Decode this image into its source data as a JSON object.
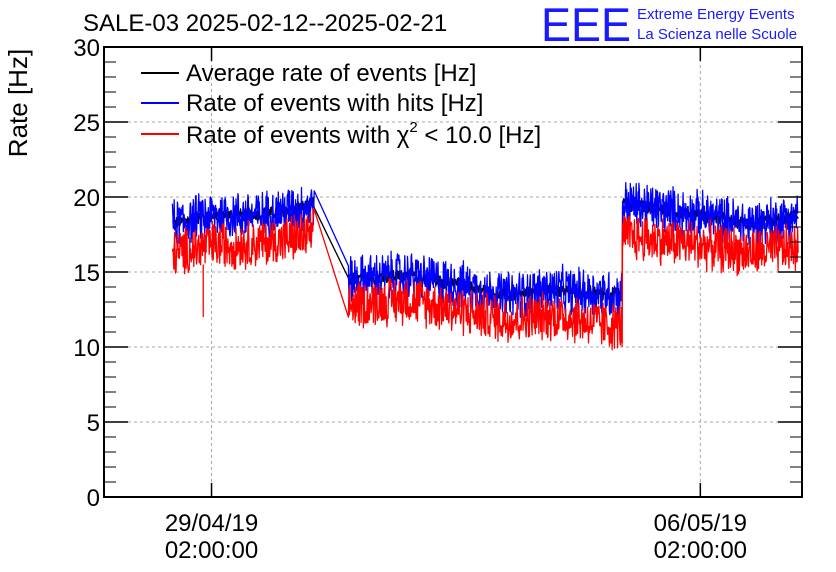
{
  "chart_data": {
    "type": "line",
    "title": "SALE-03 2025-02-12--2025-02-21",
    "xlabel": "",
    "ylabel": "Rate [Hz]",
    "ylim": [
      0,
      30
    ],
    "yticks": [
      "0",
      "5",
      "10",
      "15",
      "20",
      "25",
      "30"
    ],
    "xlim": [
      -0.22,
      1.208
    ],
    "xticks": [
      {
        "date": "29/04/19",
        "time": "02:00:00",
        "x": 0
      },
      {
        "date": "06/05/19",
        "time": "02:00:00",
        "x": 1
      }
    ],
    "grid": true,
    "legend_position": "top-left",
    "legend": [
      {
        "label": "Average rate of events [Hz]",
        "color": "#000000"
      },
      {
        "label": "Rate of events with hits [Hz]",
        "color": "#0000ff"
      },
      {
        "label_prefix": "Rate of events with ",
        "label_symbol": "χ",
        "label_sup": "2",
        "label_suffix": " < 10.0 [Hz]",
        "color": "#ff0000"
      }
    ],
    "series": [
      {
        "name": "Average rate of events [Hz]",
        "color": "#000000",
        "x": [
          -0.08,
          0.0,
          0.1,
          0.2,
          0.21,
          0.28,
          0.28,
          0.4,
          0.5,
          0.6,
          0.7,
          0.84,
          0.84,
          0.9,
          1.0,
          1.1,
          1.2
        ],
        "y": [
          18.2,
          18.8,
          18.8,
          19.4,
          19.6,
          14.2,
          14.5,
          14.8,
          14.2,
          13.4,
          13.8,
          13.5,
          19.6,
          19.3,
          18.8,
          18.2,
          18.7
        ]
      },
      {
        "name": "Rate of events with hits [Hz]",
        "color": "#0000ff",
        "x": [
          -0.08,
          0.0,
          0.1,
          0.2,
          0.21,
          0.28,
          0.28,
          0.4,
          0.5,
          0.6,
          0.7,
          0.84,
          0.84,
          0.9,
          1.0,
          1.1,
          1.2
        ],
        "y": [
          18.2,
          18.8,
          18.8,
          19.4,
          19.6,
          14.2,
          14.5,
          14.8,
          14.2,
          13.4,
          13.8,
          13.5,
          19.6,
          19.3,
          18.8,
          18.2,
          18.7
        ]
      },
      {
        "name": "Rate of events with chi2 < 10.0 [Hz]",
        "color": "#ff0000",
        "x": [
          -0.08,
          0.0,
          0.1,
          0.2,
          0.21,
          0.28,
          0.28,
          0.4,
          0.5,
          0.6,
          0.7,
          0.84,
          0.84,
          0.9,
          1.0,
          1.1,
          1.2
        ],
        "y": [
          16.2,
          16.8,
          16.9,
          17.4,
          17.6,
          12.5,
          12.8,
          13.2,
          12.5,
          11.8,
          12.1,
          11.3,
          17.4,
          17.2,
          16.8,
          16.3,
          16.6
        ]
      }
    ]
  },
  "logo": {
    "letters": "EEE",
    "line1": "Extreme Energy Events",
    "line2": "La Scienza nelle Scuole",
    "color": "#1a1aff"
  }
}
